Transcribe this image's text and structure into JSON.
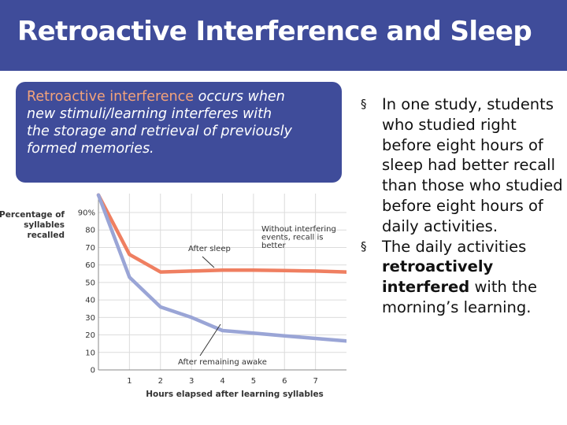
{
  "slide": {
    "title": "Retroactive Interference and Sleep",
    "definition": {
      "term": "Retroactive interference",
      "text": " occurs when new stimuli/learning interferes with the storage and retrieval of previously formed memories."
    },
    "bullets": [
      {
        "mark": "§",
        "parts": [
          {
            "text": "In one study, students who studied right before eight hours of sleep had better recall than those who studied before eight hours of daily activities.",
            "bold": false
          }
        ]
      },
      {
        "mark": "§",
        "parts": [
          {
            "text": "The daily activities ",
            "bold": false
          },
          {
            "text": "retroactively interfered",
            "bold": true
          },
          {
            "text": " with the morning’s learning.",
            "bold": false
          }
        ]
      }
    ]
  },
  "colors": {
    "accent": "#3f4c9a",
    "sleep_line": "#ef7f61",
    "awake_line": "#9aa5d6",
    "term_highlight": "#f4a37a"
  },
  "chart_data": {
    "type": "line",
    "ylabel": [
      "Percentage of",
      "syllables",
      "recalled"
    ],
    "xlabel": "Hours elapsed after learning syllables",
    "xlim": [
      0,
      8
    ],
    "ylim": [
      0,
      90
    ],
    "yticks": [
      {
        "v": 0,
        "label": "0"
      },
      {
        "v": 10,
        "label": "10"
      },
      {
        "v": 20,
        "label": "20"
      },
      {
        "v": 30,
        "label": "30"
      },
      {
        "v": 40,
        "label": "40"
      },
      {
        "v": 50,
        "label": "50"
      },
      {
        "v": 60,
        "label": "60"
      },
      {
        "v": 70,
        "label": "70"
      },
      {
        "v": 80,
        "label": "80"
      },
      {
        "v": 90,
        "label": "90%"
      }
    ],
    "xticks": [
      1,
      2,
      3,
      4,
      5,
      6,
      7
    ],
    "grid": true,
    "series": [
      {
        "name": "After sleep",
        "color": "#ef7f61",
        "x": [
          0,
          1,
          2,
          3,
          4,
          5,
          6,
          7,
          8
        ],
        "y": [
          100,
          66,
          56,
          56.5,
          57,
          57,
          56.8,
          56.5,
          56
        ]
      },
      {
        "name": "After remaining awake",
        "color": "#9aa5d6",
        "x": [
          0,
          1,
          2,
          3,
          4,
          5,
          6,
          7,
          8
        ],
        "y": [
          100,
          53,
          36,
          30,
          22.5,
          21,
          19.5,
          18,
          16.5
        ]
      }
    ],
    "annotations": [
      {
        "text": [
          "Without interfering",
          "events, recall is",
          "better"
        ]
      },
      {
        "text": [
          "After sleep"
        ]
      },
      {
        "text": [
          "After remaining awake"
        ]
      }
    ]
  }
}
